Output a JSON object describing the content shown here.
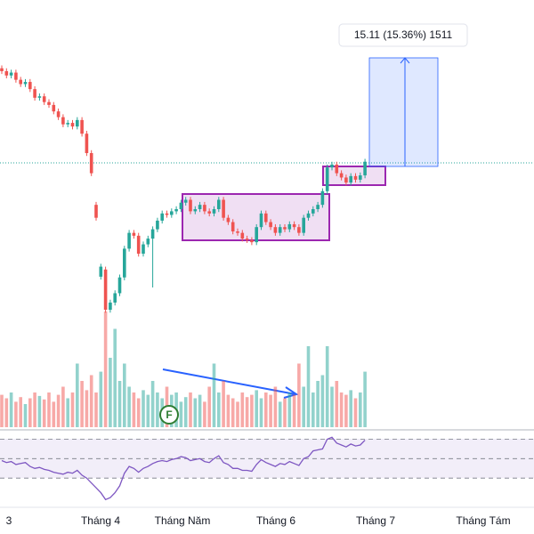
{
  "chart_data": {
    "type": "candlestick",
    "open": [
      112.0,
      111.6,
      111.0,
      111.4,
      110.4,
      109.8,
      110.1,
      109.1,
      107.9,
      108.1,
      107.3,
      106.9,
      106.0,
      105.2,
      104.2,
      104.4,
      103.9,
      104.8,
      102.9,
      100.2,
      93.0,
      83.0,
      84.0,
      78.4,
      79.4,
      80.7,
      82.9,
      86.9,
      89.1,
      88.7,
      86.2,
      87.5,
      88.3,
      89.6,
      90.8,
      91.8,
      91.6,
      92.1,
      92.4,
      93.3,
      93.7,
      92.1,
      92.4,
      93.0,
      92.1,
      91.8,
      92.4,
      93.7,
      91.2,
      90.6,
      89.3,
      89.1,
      88.3,
      88.1,
      87.8,
      89.9,
      91.8,
      90.6,
      89.9,
      89.1,
      89.9,
      89.6,
      90.3,
      89.9,
      89.1,
      91.2,
      91.8,
      92.4,
      93.0,
      94.9,
      98.2,
      98.6,
      97.4,
      96.8,
      96.1,
      97.0,
      96.5,
      97.1
    ],
    "high": [
      112.4,
      112.0,
      111.8,
      111.8,
      110.8,
      110.5,
      110.5,
      109.5,
      108.5,
      108.5,
      107.7,
      107.3,
      106.4,
      105.6,
      104.8,
      104.8,
      105.2,
      105.2,
      103.3,
      100.6,
      93.4,
      84.8,
      84.4,
      79.8,
      81.1,
      83.3,
      87.3,
      89.5,
      89.5,
      89.1,
      87.9,
      88.7,
      90.0,
      91.2,
      92.2,
      92.2,
      92.5,
      92.8,
      93.7,
      94.1,
      94.1,
      92.8,
      93.4,
      93.4,
      92.5,
      92.8,
      94.1,
      94.1,
      91.6,
      91.0,
      89.7,
      89.5,
      88.7,
      88.5,
      90.3,
      92.2,
      92.2,
      91.0,
      90.3,
      90.3,
      90.3,
      90.7,
      90.7,
      90.3,
      91.6,
      92.2,
      92.8,
      93.4,
      95.3,
      98.6,
      99.0,
      99.0,
      97.8,
      97.2,
      97.4,
      97.4,
      97.5,
      99.4
    ],
    "low": [
      111.2,
      110.6,
      110.6,
      110.0,
      109.4,
      109.4,
      108.7,
      107.5,
      107.5,
      106.9,
      106.5,
      105.6,
      104.8,
      103.8,
      103.8,
      103.5,
      103.5,
      102.5,
      99.8,
      97.0,
      90.8,
      82.6,
      78.0,
      78.0,
      79.0,
      80.3,
      82.5,
      86.5,
      88.3,
      85.8,
      85.8,
      87.1,
      81.5,
      89.2,
      90.4,
      91.2,
      91.2,
      91.7,
      92.0,
      92.9,
      91.7,
      91.7,
      92.0,
      91.7,
      91.4,
      91.4,
      92.0,
      90.8,
      90.2,
      88.9,
      88.7,
      87.9,
      87.7,
      87.4,
      87.4,
      89.5,
      90.2,
      89.5,
      88.7,
      88.7,
      89.2,
      89.2,
      89.5,
      88.7,
      88.7,
      90.8,
      91.4,
      92.0,
      92.6,
      94.5,
      97.8,
      97.0,
      96.4,
      95.7,
      95.7,
      96.1,
      96.1,
      96.7
    ],
    "close": [
      111.6,
      111.0,
      111.4,
      110.4,
      109.8,
      110.1,
      109.1,
      107.9,
      108.1,
      107.3,
      106.9,
      106.0,
      105.2,
      104.2,
      104.4,
      103.9,
      104.8,
      102.9,
      100.2,
      97.4,
      91.2,
      84.4,
      78.4,
      79.4,
      80.7,
      82.9,
      86.9,
      89.1,
      88.7,
      86.2,
      87.5,
      88.3,
      89.6,
      90.8,
      91.8,
      91.6,
      92.1,
      92.4,
      93.3,
      93.7,
      92.1,
      92.4,
      93.0,
      92.1,
      91.8,
      92.4,
      93.7,
      91.2,
      90.6,
      89.3,
      89.1,
      88.3,
      88.1,
      87.8,
      89.9,
      91.8,
      90.6,
      89.9,
      89.1,
      89.9,
      89.6,
      90.3,
      89.9,
      89.1,
      91.2,
      91.8,
      92.4,
      93.0,
      94.9,
      98.2,
      98.6,
      97.4,
      96.8,
      96.1,
      97.0,
      96.5,
      97.1,
      99.0
    ],
    "volume": [
      28,
      25,
      30,
      22,
      26,
      20,
      25,
      30,
      27,
      24,
      30,
      22,
      28,
      35,
      25,
      30,
      55,
      40,
      32,
      45,
      30,
      48,
      100,
      60,
      85,
      40,
      55,
      35,
      30,
      25,
      32,
      28,
      40,
      30,
      25,
      35,
      28,
      30,
      22,
      26,
      30,
      25,
      28,
      22,
      35,
      55,
      30,
      40,
      28,
      25,
      22,
      30,
      26,
      28,
      32,
      25,
      30,
      28,
      35,
      22,
      25,
      30,
      28,
      55,
      35,
      70,
      30,
      40,
      45,
      70,
      35,
      40,
      30,
      28,
      32,
      25,
      30,
      48
    ],
    "rsi": [
      48,
      46,
      47,
      44,
      45,
      46,
      42,
      40,
      41,
      39,
      38,
      36,
      35,
      34,
      36,
      35,
      38,
      33,
      30,
      25,
      20,
      15,
      8,
      10,
      15,
      22,
      35,
      42,
      40,
      36,
      40,
      42,
      45,
      47,
      48,
      47,
      49,
      50,
      52,
      51,
      48,
      49,
      50,
      47,
      46,
      50,
      53,
      46,
      44,
      40,
      40,
      38,
      38,
      37,
      44,
      49,
      46,
      44,
      42,
      45,
      44,
      47,
      45,
      43,
      50,
      52,
      58,
      59,
      60,
      70,
      72,
      66,
      64,
      62,
      65,
      63,
      64,
      69
    ],
    "ylim": [
      47.2,
      121.5
    ],
    "volume_lim": [
      0,
      100
    ],
    "rsi_lim": [
      0,
      75
    ],
    "rsi_levels": [
      70,
      50,
      30
    ],
    "up_color": "#26a69a",
    "down_color": "#ef5350",
    "rsi_color": "#7e57c2",
    "x_labels": [
      "3",
      "Tháng 4",
      "Tháng Năm",
      "Tháng 6",
      "Tháng 7",
      "Tháng Tám"
    ],
    "measure_label": "15.11 (15.36%) 1511",
    "marker": "F"
  }
}
